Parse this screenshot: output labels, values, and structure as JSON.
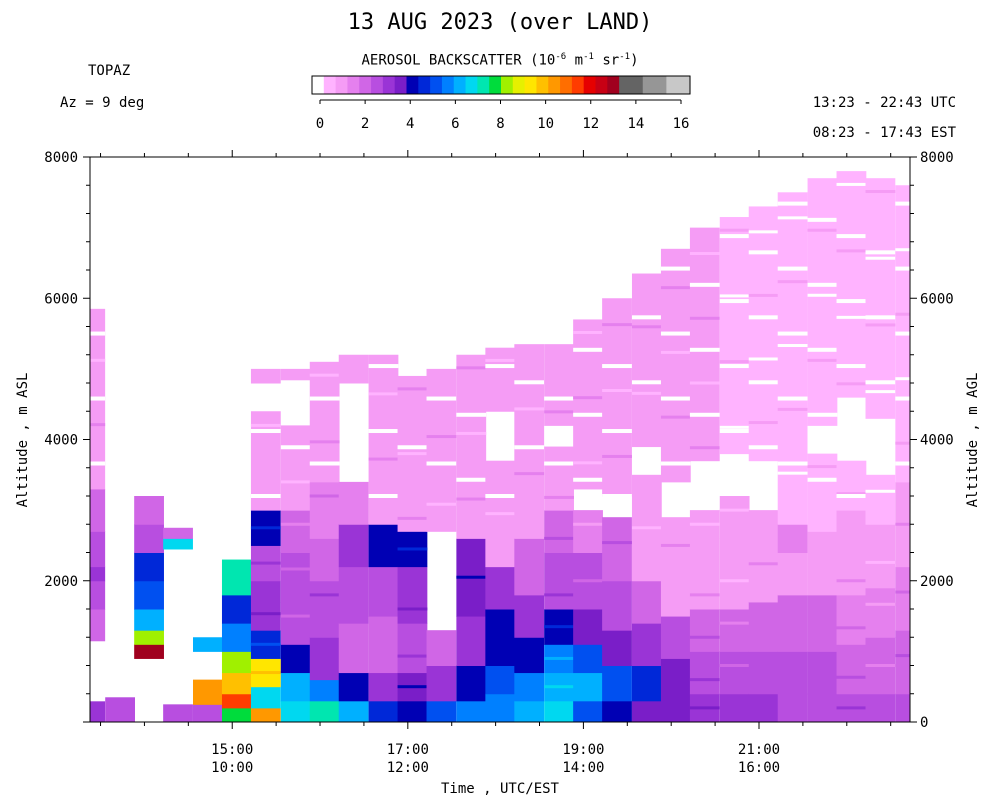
{
  "header": {
    "title": "13 AUG 2023 (over LAND)",
    "station": "TOPAZ",
    "azimuth": "Az =   9 deg",
    "utc_range": "13:23 - 22:43 UTC",
    "est_range": "08:23 - 17:43 EST"
  },
  "colorbar": {
    "title_prefix": "AEROSOL BACKSCATTER (10",
    "exp1": "-6",
    "mid1": " m",
    "exp2": "-1",
    "mid2": " sr",
    "exp3": "-1",
    "suffix": ")",
    "ticks": [
      "0",
      "2",
      "4",
      "6",
      "8",
      "10",
      "12",
      "14",
      "16"
    ],
    "colors": [
      "#ffffff",
      "#ffb3ff",
      "#f59cf5",
      "#e580ee",
      "#d066e6",
      "#b84ee0",
      "#9a34d6",
      "#7a1ec8",
      "#0000b4",
      "#0028d8",
      "#0050f0",
      "#0080ff",
      "#00b0ff",
      "#00d8f0",
      "#00e6b0",
      "#00dc3c",
      "#a0f000",
      "#e6f000",
      "#ffe600",
      "#ffc000",
      "#ff9800",
      "#ff6e00",
      "#ff3c00",
      "#e60000",
      "#c80014",
      "#a0001e",
      "#646464",
      "#646464",
      "#969696",
      "#969696",
      "#c8c8c8",
      "#c8c8c8"
    ]
  },
  "chart_data": {
    "type": "heatmap",
    "title": "13 AUG 2023 (over LAND)",
    "xlabel": "Time , UTC/EST",
    "ylabel_left": "Altitude , m ASL",
    "ylabel_right": "Altitude , m AGL",
    "x_range_utc_hours": [
      13.38,
      22.72
    ],
    "y_range_m": [
      0,
      8000
    ],
    "x_ticks": [
      {
        "utc": "15:00",
        "est": "10:00"
      },
      {
        "utc": "17:00",
        "est": "12:00"
      },
      {
        "utc": "19:00",
        "est": "14:00"
      },
      {
        "utc": "21:00",
        "est": "16:00"
      }
    ],
    "y_ticks_left": [
      "2000",
      "4000",
      "6000",
      "8000"
    ],
    "y_ticks_right": [
      "0",
      "2000",
      "4000",
      "6000",
      "8000"
    ],
    "colorbar_range": [
      0,
      16
    ],
    "profiles": [
      {
        "utc": 13.38,
        "top": 5850,
        "gaps": [
          [
            300,
            1150
          ]
        ],
        "layers": [
          [
            0,
            300,
            6
          ],
          [
            300,
            1150,
            0
          ],
          [
            1150,
            1600,
            4
          ],
          [
            1600,
            2000,
            5
          ],
          [
            2000,
            2200,
            6
          ],
          [
            2200,
            2700,
            5
          ],
          [
            2700,
            3300,
            4
          ],
          [
            3300,
            5850,
            2
          ]
        ]
      },
      {
        "utc": 13.72,
        "top": 350,
        "gaps": [],
        "layers": [
          [
            0,
            350,
            5
          ]
        ]
      },
      {
        "utc": 14.05,
        "top": 3200,
        "gaps": [
          [
            0,
            900
          ]
        ],
        "layers": [
          [
            900,
            1100,
            25
          ],
          [
            1100,
            1300,
            16
          ],
          [
            1300,
            1600,
            12
          ],
          [
            1600,
            2000,
            10
          ],
          [
            2000,
            2400,
            9
          ],
          [
            2400,
            2800,
            5
          ],
          [
            2800,
            3200,
            4
          ]
        ]
      },
      {
        "utc": 14.38,
        "top": 2750,
        "gaps": [
          [
            0,
            2450
          ]
        ],
        "layers": [
          [
            0,
            250,
            5
          ],
          [
            2450,
            2600,
            13
          ],
          [
            2600,
            2750,
            4
          ]
        ]
      },
      {
        "utc": 14.72,
        "top": 1200,
        "gaps": [
          [
            600,
            1000
          ]
        ],
        "layers": [
          [
            0,
            250,
            5
          ],
          [
            250,
            600,
            20
          ],
          [
            1000,
            1200,
            12
          ]
        ]
      },
      {
        "utc": 15.05,
        "top": 2300,
        "gaps": [],
        "layers": [
          [
            0,
            200,
            15
          ],
          [
            200,
            400,
            22
          ],
          [
            400,
            700,
            19
          ],
          [
            700,
            1000,
            16
          ],
          [
            1000,
            1400,
            11
          ],
          [
            1400,
            1800,
            9
          ],
          [
            1800,
            2300,
            14
          ]
        ]
      },
      {
        "utc": 15.38,
        "top": 5000,
        "gaps": [
          [
            4400,
            4800
          ]
        ],
        "layers": [
          [
            0,
            200,
            20
          ],
          [
            200,
            500,
            13
          ],
          [
            500,
            900,
            18
          ],
          [
            900,
            1300,
            9
          ],
          [
            1300,
            2000,
            6
          ],
          [
            2000,
            2500,
            5
          ],
          [
            2500,
            3000,
            8
          ],
          [
            3000,
            4400,
            2
          ],
          [
            4800,
            5000,
            2
          ]
        ]
      },
      {
        "utc": 15.72,
        "top": 5000,
        "gaps": [
          [
            4200,
            4800
          ]
        ],
        "layers": [
          [
            0,
            300,
            13
          ],
          [
            300,
            700,
            12
          ],
          [
            700,
            1100,
            8
          ],
          [
            1100,
            1700,
            5
          ],
          [
            1700,
            2400,
            5
          ],
          [
            2400,
            3000,
            4
          ],
          [
            3000,
            4200,
            2
          ],
          [
            4800,
            5000,
            2
          ]
        ]
      },
      {
        "utc": 16.05,
        "top": 5100,
        "gaps": [],
        "layers": [
          [
            0,
            300,
            14
          ],
          [
            300,
            600,
            11
          ],
          [
            600,
            1200,
            6
          ],
          [
            1200,
            2000,
            5
          ],
          [
            2000,
            2600,
            4
          ],
          [
            2600,
            3400,
            3
          ],
          [
            3400,
            5100,
            2
          ]
        ]
      },
      {
        "utc": 16.38,
        "top": 5200,
        "gaps": [
          [
            3400,
            4800
          ]
        ],
        "layers": [
          [
            0,
            300,
            12
          ],
          [
            300,
            700,
            8
          ],
          [
            700,
            1400,
            4
          ],
          [
            1400,
            2200,
            5
          ],
          [
            2200,
            2800,
            6
          ],
          [
            2800,
            3400,
            3
          ],
          [
            4800,
            5200,
            2
          ]
        ]
      },
      {
        "utc": 16.72,
        "top": 5200,
        "gaps": [],
        "layers": [
          [
            0,
            300,
            9
          ],
          [
            300,
            700,
            6
          ],
          [
            700,
            1500,
            4
          ],
          [
            1500,
            2200,
            5
          ],
          [
            2200,
            2800,
            8
          ],
          [
            2800,
            5200,
            2
          ]
        ]
      },
      {
        "utc": 17.05,
        "top": 4900,
        "gaps": [],
        "layers": [
          [
            0,
            300,
            8
          ],
          [
            300,
            700,
            7
          ],
          [
            700,
            1400,
            5
          ],
          [
            1400,
            2200,
            6
          ],
          [
            2200,
            2700,
            8
          ],
          [
            2700,
            4900,
            2
          ]
        ]
      },
      {
        "utc": 17.38,
        "top": 5000,
        "gaps": [
          [
            1300,
            2700
          ]
        ],
        "layers": [
          [
            0,
            300,
            10
          ],
          [
            300,
            800,
            6
          ],
          [
            800,
            1300,
            4
          ],
          [
            2700,
            5000,
            2
          ]
        ]
      },
      {
        "utc": 17.72,
        "top": 5200,
        "gaps": [],
        "layers": [
          [
            0,
            300,
            11
          ],
          [
            300,
            800,
            8
          ],
          [
            800,
            1500,
            6
          ],
          [
            1500,
            2600,
            7
          ],
          [
            2600,
            5200,
            2
          ]
        ]
      },
      {
        "utc": 18.05,
        "top": 5300,
        "gaps": [
          [
            3700,
            4400
          ]
        ],
        "layers": [
          [
            0,
            400,
            11
          ],
          [
            400,
            800,
            10
          ],
          [
            800,
            1600,
            8
          ],
          [
            1600,
            2200,
            6
          ],
          [
            2200,
            3700,
            2
          ],
          [
            4400,
            5300,
            2
          ]
        ]
      },
      {
        "utc": 18.38,
        "top": 5350,
        "gaps": [],
        "layers": [
          [
            0,
            300,
            12
          ],
          [
            300,
            700,
            11
          ],
          [
            700,
            1200,
            8
          ],
          [
            1200,
            1800,
            6
          ],
          [
            1800,
            2600,
            4
          ],
          [
            2600,
            5350,
            2
          ]
        ]
      },
      {
        "utc": 18.72,
        "top": 5350,
        "gaps": [
          [
            3900,
            4200
          ]
        ],
        "layers": [
          [
            0,
            300,
            13
          ],
          [
            300,
            700,
            12
          ],
          [
            700,
            1100,
            11
          ],
          [
            1100,
            1600,
            8
          ],
          [
            1600,
            2400,
            5
          ],
          [
            2400,
            3000,
            4
          ],
          [
            3000,
            3900,
            2
          ],
          [
            4200,
            5350,
            2
          ]
        ]
      },
      {
        "utc": 19.05,
        "top": 5700,
        "gaps": [
          [
            3000,
            3300
          ]
        ],
        "layers": [
          [
            0,
            300,
            10
          ],
          [
            300,
            700,
            12
          ],
          [
            700,
            1100,
            10
          ],
          [
            1100,
            1600,
            7
          ],
          [
            1600,
            2400,
            5
          ],
          [
            2400,
            3000,
            3
          ],
          [
            3300,
            5700,
            2
          ]
        ]
      },
      {
        "utc": 19.38,
        "top": 6000,
        "gaps": [
          [
            2900,
            3200
          ]
        ],
        "layers": [
          [
            0,
            300,
            8
          ],
          [
            300,
            800,
            10
          ],
          [
            800,
            1300,
            7
          ],
          [
            1300,
            2000,
            5
          ],
          [
            2000,
            2900,
            4
          ],
          [
            3200,
            6000,
            2
          ]
        ]
      },
      {
        "utc": 19.72,
        "top": 6350,
        "gaps": [
          [
            3500,
            3900
          ]
        ],
        "layers": [
          [
            0,
            300,
            7
          ],
          [
            300,
            800,
            9
          ],
          [
            800,
            1400,
            6
          ],
          [
            1400,
            2000,
            4
          ],
          [
            2000,
            3500,
            2
          ],
          [
            3900,
            6350,
            2
          ]
        ]
      },
      {
        "utc": 20.05,
        "top": 6700,
        "gaps": [
          [
            2900,
            3400
          ]
        ],
        "layers": [
          [
            0,
            400,
            7
          ],
          [
            400,
            900,
            7
          ],
          [
            900,
            1500,
            5
          ],
          [
            1500,
            2900,
            2
          ],
          [
            3400,
            6700,
            2
          ]
        ]
      },
      {
        "utc": 20.38,
        "top": 7000,
        "gaps": [
          [
            3000,
            3700
          ]
        ],
        "layers": [
          [
            0,
            400,
            6
          ],
          [
            400,
            1000,
            5
          ],
          [
            1000,
            1600,
            4
          ],
          [
            1600,
            3000,
            2
          ],
          [
            3700,
            7000,
            2
          ]
        ]
      },
      {
        "utc": 20.72,
        "top": 7150,
        "gaps": [
          [
            3200,
            3800
          ]
        ],
        "layers": [
          [
            0,
            400,
            6
          ],
          [
            400,
            1000,
            5
          ],
          [
            1000,
            1600,
            4
          ],
          [
            1600,
            2600,
            2
          ],
          [
            2600,
            3200,
            2
          ],
          [
            3800,
            7150,
            1
          ]
        ]
      },
      {
        "utc": 21.05,
        "top": 7300,
        "gaps": [
          [
            3000,
            3700
          ]
        ],
        "layers": [
          [
            0,
            400,
            6
          ],
          [
            400,
            1000,
            5
          ],
          [
            1000,
            1700,
            4
          ],
          [
            1700,
            2600,
            2
          ],
          [
            2600,
            3000,
            2
          ],
          [
            3700,
            7300,
            1
          ]
        ]
      },
      {
        "utc": 21.38,
        "top": 7500,
        "gaps": [],
        "layers": [
          [
            0,
            400,
            5
          ],
          [
            400,
            1000,
            5
          ],
          [
            1000,
            1800,
            4
          ],
          [
            1800,
            2400,
            2
          ],
          [
            2400,
            2800,
            3
          ],
          [
            2800,
            7500,
            1
          ]
        ]
      },
      {
        "utc": 21.72,
        "top": 7700,
        "gaps": [
          [
            3800,
            4200
          ]
        ],
        "layers": [
          [
            0,
            400,
            5
          ],
          [
            400,
            1000,
            5
          ],
          [
            1000,
            1800,
            4
          ],
          [
            1800,
            2700,
            2
          ],
          [
            2700,
            3800,
            1
          ],
          [
            4200,
            7700,
            1
          ]
        ]
      },
      {
        "utc": 22.05,
        "top": 7800,
        "gaps": [
          [
            3700,
            4600
          ]
        ],
        "layers": [
          [
            0,
            400,
            5
          ],
          [
            400,
            1100,
            4
          ],
          [
            1100,
            1800,
            3
          ],
          [
            1800,
            3000,
            2
          ],
          [
            3000,
            3700,
            1
          ],
          [
            4600,
            7800,
            1
          ]
        ]
      },
      {
        "utc": 22.38,
        "top": 7700,
        "gaps": [
          [
            3500,
            4300
          ]
        ],
        "layers": [
          [
            0,
            400,
            5
          ],
          [
            400,
            1200,
            4
          ],
          [
            1200,
            1900,
            3
          ],
          [
            1900,
            2800,
            2
          ],
          [
            2800,
            3500,
            1
          ],
          [
            4300,
            7700,
            1
          ]
        ]
      },
      {
        "utc": 22.72,
        "top": 7600,
        "gaps": [],
        "layers": [
          [
            0,
            400,
            5
          ],
          [
            400,
            1300,
            4
          ],
          [
            1300,
            2200,
            3
          ],
          [
            2200,
            3400,
            2
          ],
          [
            3400,
            7600,
            1
          ]
        ]
      }
    ]
  }
}
